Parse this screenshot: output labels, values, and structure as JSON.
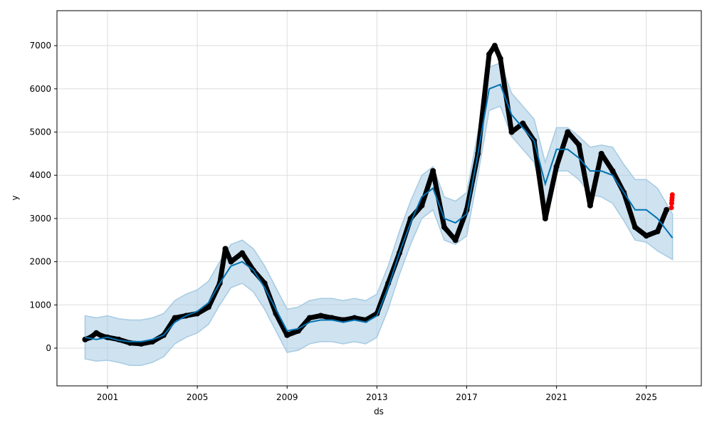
{
  "chart_data": {
    "type": "line",
    "title": "",
    "xlabel": "ds",
    "ylabel": "y",
    "xlim": [
      1999.0,
      2027.1
    ],
    "ylim": [
      -850,
      7800
    ],
    "grid": true,
    "x_ticks": [
      2001,
      2005,
      2009,
      2013,
      2017,
      2021,
      2025
    ],
    "x_tick_labels": [
      "2001",
      "2005",
      "2009",
      "2013",
      "2017",
      "2021",
      "2025"
    ],
    "y_ticks": [
      0,
      1000,
      2000,
      3000,
      4000,
      5000,
      6000,
      7000
    ],
    "y_tick_labels": [
      "0",
      "1000",
      "2000",
      "3000",
      "4000",
      "5000",
      "6000",
      "7000"
    ],
    "colors": {
      "actual": "#000000",
      "forecast": "#0072B2",
      "interval": "#A6CBE3",
      "future_actual": "#FF0000"
    },
    "actual": {
      "x": [
        2000.0,
        2000.25,
        2000.5,
        2000.75,
        2001.0,
        2001.5,
        2002.0,
        2002.5,
        2003.0,
        2003.5,
        2004.0,
        2004.5,
        2005.0,
        2005.5,
        2006.0,
        2006.25,
        2006.5,
        2007.0,
        2007.5,
        2008.0,
        2008.5,
        2009.0,
        2009.5,
        2010.0,
        2010.5,
        2011.0,
        2011.5,
        2012.0,
        2012.5,
        2013.0,
        2013.5,
        2014.0,
        2014.5,
        2015.0,
        2015.5,
        2016.0,
        2016.5,
        2017.0,
        2017.5,
        2018.0,
        2018.25,
        2018.5,
        2019.0,
        2019.5,
        2020.0,
        2020.5,
        2021.0,
        2021.5,
        2022.0,
        2022.5,
        2023.0,
        2023.5,
        2024.0,
        2024.5,
        2025.0,
        2025.5,
        2025.9
      ],
      "y": [
        200,
        250,
        350,
        280,
        250,
        200,
        120,
        100,
        150,
        300,
        700,
        750,
        800,
        950,
        1500,
        2300,
        2000,
        2200,
        1800,
        1500,
        800,
        300,
        400,
        700,
        750,
        700,
        650,
        700,
        650,
        800,
        1500,
        2200,
        3000,
        3300,
        4100,
        2800,
        2500,
        3200,
        4500,
        6800,
        7000,
        6700,
        5000,
        5200,
        4800,
        3000,
        4200,
        5000,
        4700,
        3300,
        4500,
        4100,
        3600,
        2800,
        2600,
        2700,
        3200
      ]
    },
    "forecast": {
      "x": [
        2000.0,
        2000.5,
        2001.0,
        2001.5,
        2002.0,
        2002.5,
        2003.0,
        2003.5,
        2004.0,
        2004.5,
        2005.0,
        2005.5,
        2006.0,
        2006.5,
        2007.0,
        2007.5,
        2008.0,
        2008.5,
        2009.0,
        2009.5,
        2010.0,
        2010.5,
        2011.0,
        2011.5,
        2012.0,
        2012.5,
        2013.0,
        2013.5,
        2014.0,
        2014.5,
        2015.0,
        2015.5,
        2016.0,
        2016.5,
        2017.0,
        2017.5,
        2018.0,
        2018.5,
        2019.0,
        2019.5,
        2020.0,
        2020.5,
        2021.0,
        2021.5,
        2022.0,
        2022.5,
        2023.0,
        2023.5,
        2024.0,
        2024.5,
        2025.0,
        2025.5,
        2026.17
      ],
      "yhat": [
        250,
        200,
        250,
        180,
        150,
        150,
        200,
        300,
        600,
        750,
        850,
        1050,
        1500,
        1900,
        2000,
        1800,
        1400,
        900,
        400,
        450,
        600,
        650,
        650,
        600,
        650,
        600,
        750,
        1400,
        2200,
        2900,
        3500,
        3700,
        3000,
        2900,
        3100,
        4500,
        6000,
        6100,
        5400,
        5100,
        4800,
        3800,
        4600,
        4600,
        4400,
        4100,
        4100,
        4000,
        3600,
        3200,
        3200,
        3000,
        2550
      ],
      "yhat_lower": [
        -250,
        -300,
        -280,
        -330,
        -400,
        -400,
        -330,
        -200,
        100,
        250,
        350,
        550,
        1000,
        1400,
        1500,
        1300,
        900,
        400,
        -100,
        -50,
        100,
        150,
        150,
        100,
        150,
        100,
        250,
        900,
        1700,
        2400,
        3000,
        3200,
        2500,
        2400,
        2600,
        4000,
        5500,
        5600,
        4900,
        4600,
        4300,
        3300,
        4100,
        4100,
        3900,
        3550,
        3500,
        3350,
        2950,
        2500,
        2450,
        2250,
        2050
      ],
      "yhat_upper": [
        750,
        700,
        750,
        680,
        650,
        650,
        700,
        800,
        1100,
        1250,
        1350,
        1550,
        2000,
        2400,
        2500,
        2300,
        1900,
        1400,
        900,
        950,
        1100,
        1150,
        1150,
        1100,
        1150,
        1100,
        1250,
        1900,
        2700,
        3400,
        4000,
        4200,
        3500,
        3400,
        3600,
        5000,
        6500,
        6600,
        5900,
        5600,
        5300,
        4300,
        5100,
        5100,
        4900,
        4650,
        4700,
        4650,
        4250,
        3900,
        3900,
        3700,
        3100
      ]
    },
    "future_actual": {
      "x": [
        2026.12,
        2026.13,
        2026.14,
        2026.15,
        2026.16
      ],
      "y": [
        3250,
        3350,
        3420,
        3480,
        3550
      ]
    }
  }
}
